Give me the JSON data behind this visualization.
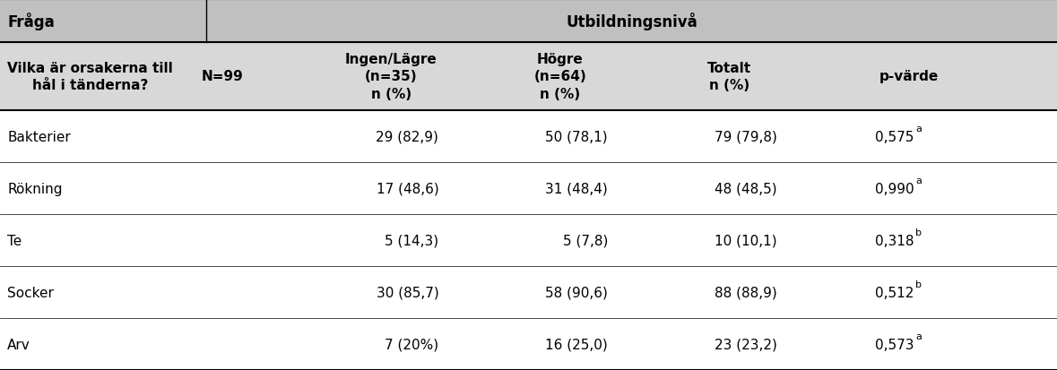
{
  "title_row": [
    "Fråga",
    "Utbildningsnivå"
  ],
  "header_row1": [
    "Vilka är orsakerna till\nhål i tänderna?",
    "N=99",
    "Ingen/Lägre\n(n=35)\nn (%)",
    "Högre\n(n=64)\nn (%)",
    "Totalt\nn (%)",
    "p-värde"
  ],
  "rows": [
    [
      "Bakterier",
      "",
      "29 (82,9)",
      "50 (78,1)",
      "79 (79,8)",
      "0,575",
      "a"
    ],
    [
      "Rökning",
      "",
      "17 (48,6)",
      "31 (48,4)",
      "48 (48,5)",
      "0,990",
      "a"
    ],
    [
      "Te",
      "",
      "5 (14,3)",
      "5 (7,8)",
      "10 (10,1)",
      "0,318",
      "b"
    ],
    [
      "Socker",
      "",
      "30 (85,7)",
      "58 (90,6)",
      "88 (88,9)",
      "0,512",
      "b"
    ],
    [
      "Arv",
      "",
      "7 (20%)",
      "16 (25,0)",
      "23 (23,2)",
      "0,573",
      "a"
    ]
  ],
  "header_bg": "#c0c0c0",
  "subheader_bg": "#d8d8d8",
  "row_bg": "#ffffff",
  "text_color": "#000000",
  "font_size": 11,
  "title_font_size": 12
}
